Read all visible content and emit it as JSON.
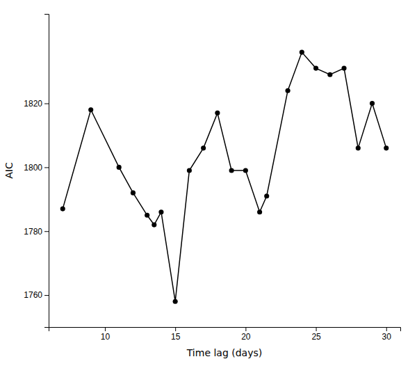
{
  "chart_data": {
    "type": "line",
    "x": [
      7,
      9,
      11,
      12,
      13,
      13.5,
      14,
      15,
      16,
      17,
      18,
      19,
      20,
      21,
      21.5,
      23,
      24,
      25,
      26,
      27,
      28,
      29,
      30
    ],
    "values": [
      1787,
      1818,
      1800,
      1792,
      1785,
      1782,
      1786,
      1758,
      1799,
      1806,
      1817,
      1799,
      1799,
      1786,
      1791,
      1824,
      1836,
      1831,
      1829,
      1831,
      1806,
      1820,
      1806
    ],
    "xlabel": "Time lag (days)",
    "ylabel": "AIC",
    "xlim": [
      6.0,
      31.0
    ],
    "ylim": [
      1750,
      1848
    ],
    "xticks": [
      10,
      15,
      20,
      25,
      30
    ],
    "yticks": [
      1760,
      1780,
      1800,
      1820
    ],
    "color": "#000000",
    "marker": "circle",
    "line_style": "solid",
    "grid": false
  }
}
